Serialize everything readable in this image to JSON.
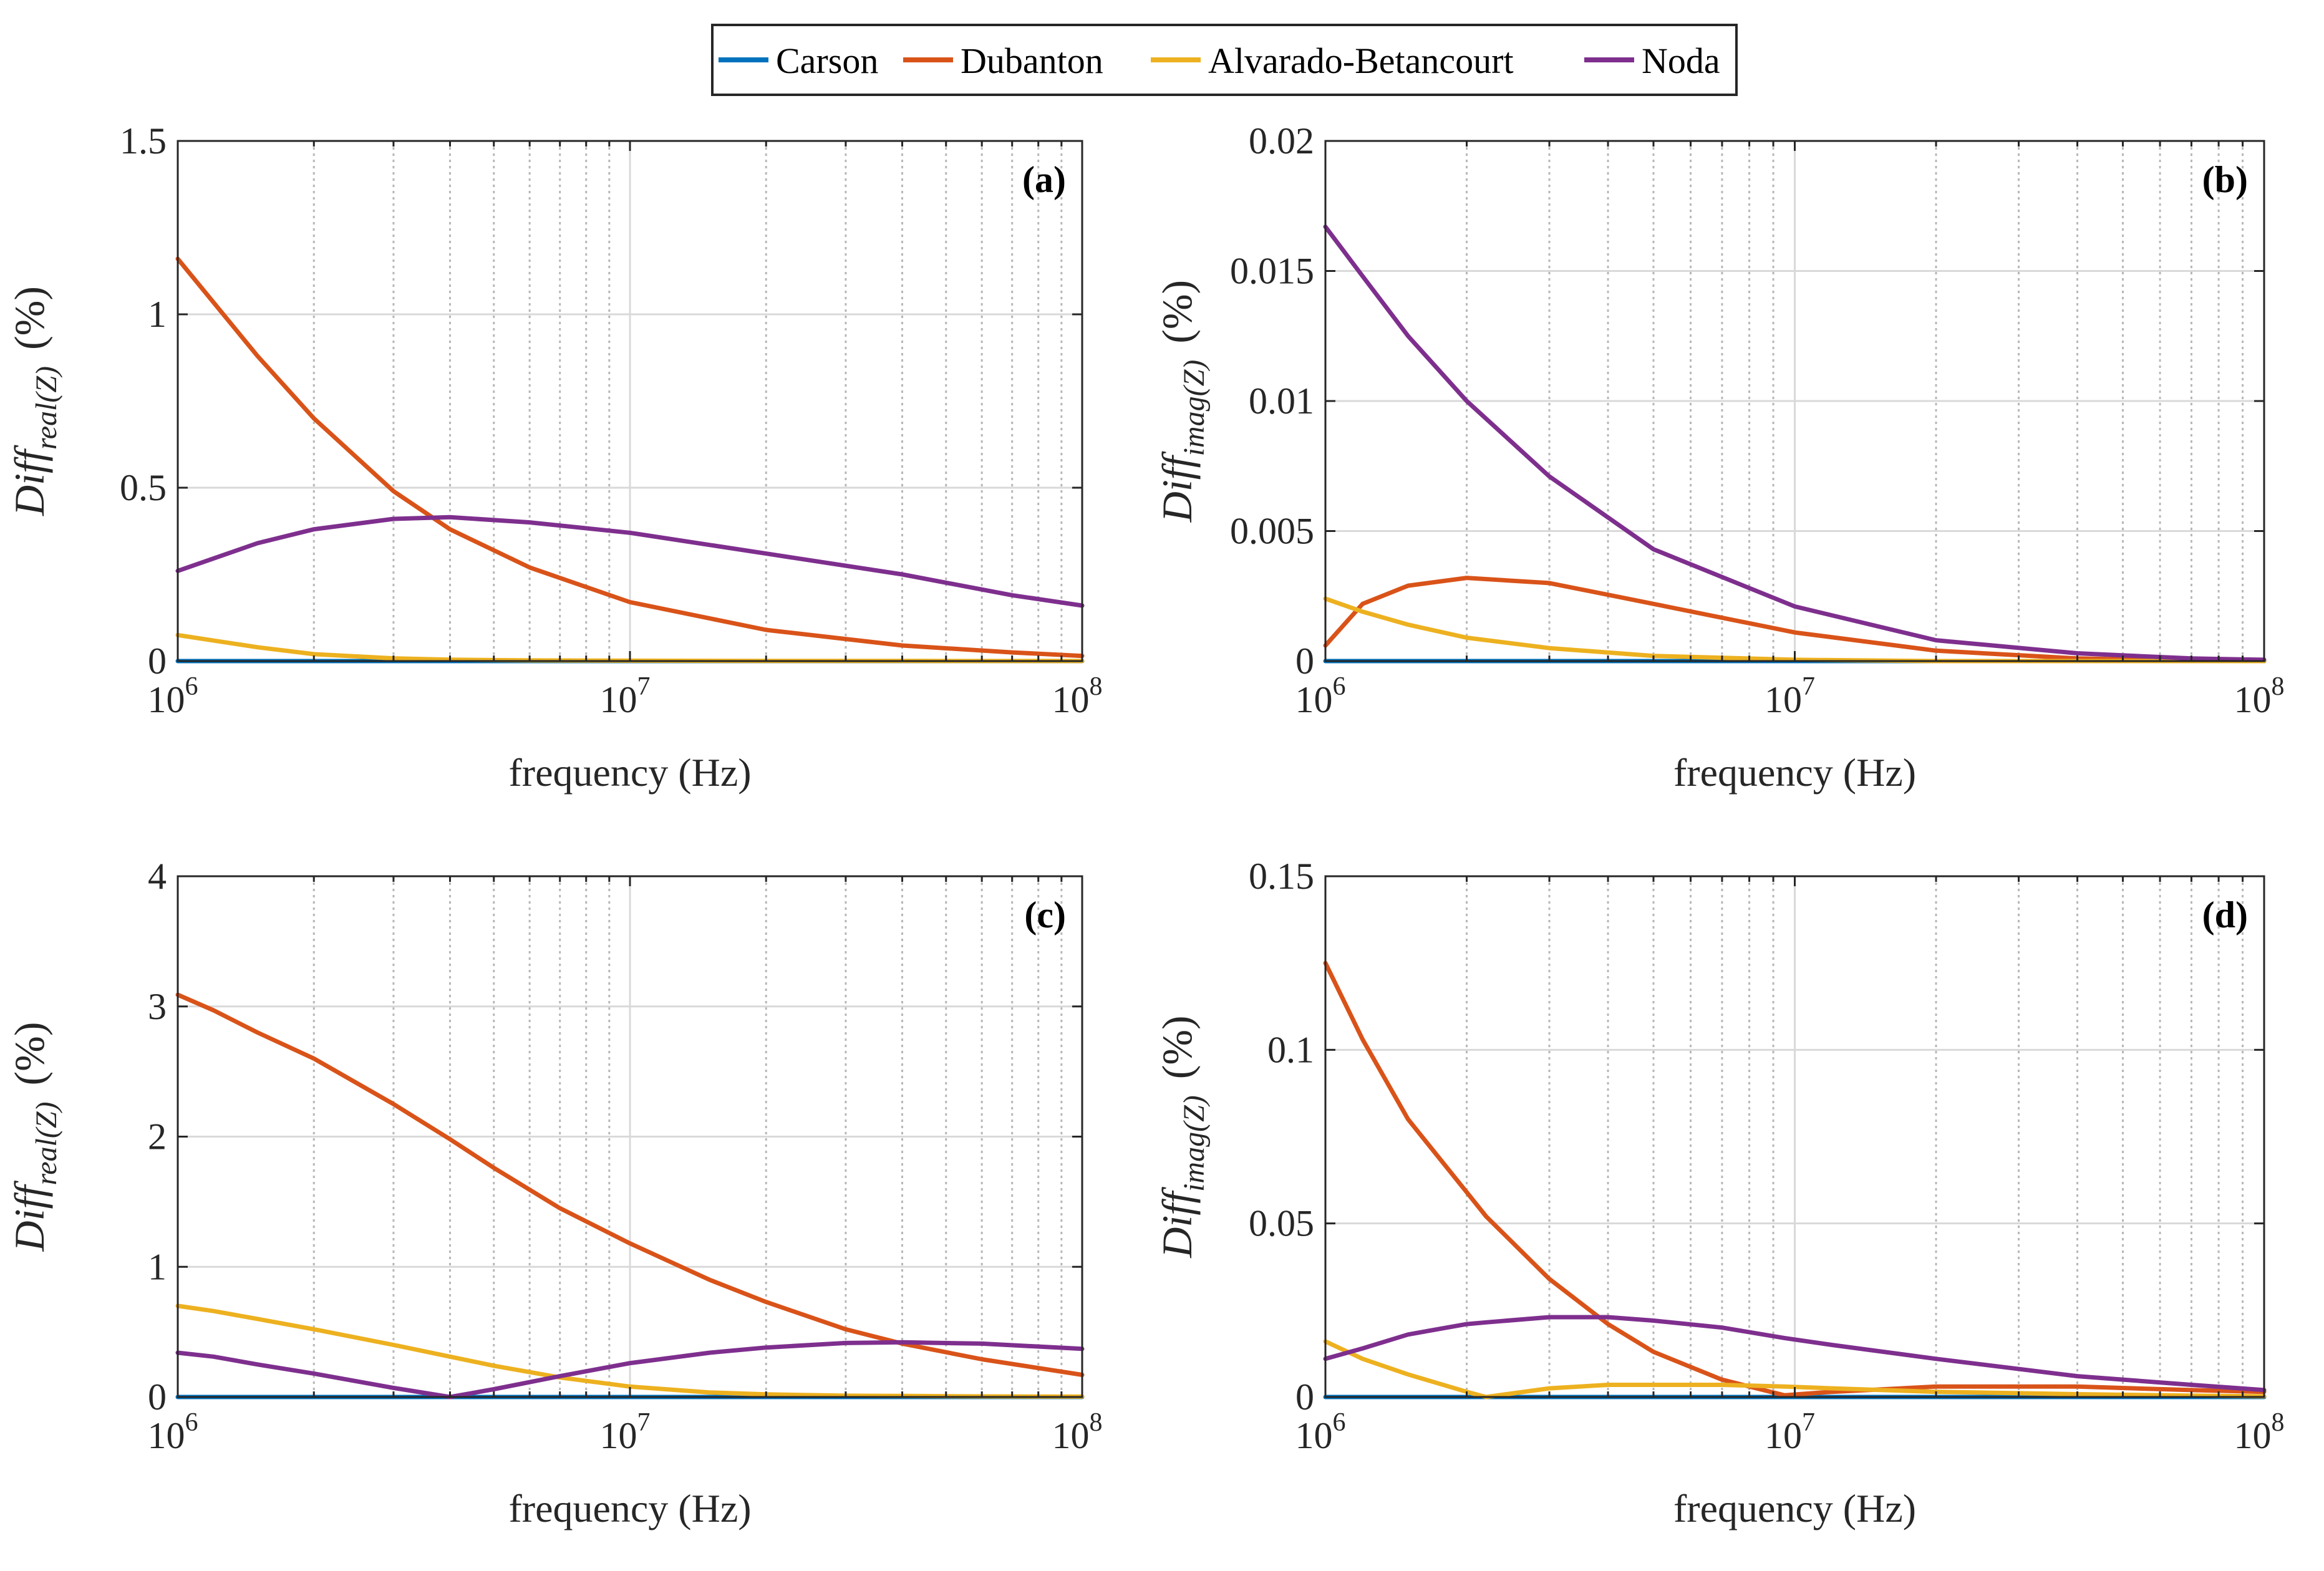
{
  "legend": {
    "entries": [
      {
        "name": "Carson",
        "color": "#0072BD"
      },
      {
        "name": "Dubanton",
        "color": "#D95319"
      },
      {
        "name": "Alvarado-Betancourt",
        "color": "#EDB120"
      },
      {
        "name": "Noda",
        "color": "#7E2F8E"
      }
    ]
  },
  "chart_data": [
    {
      "type": "line",
      "panel": "(a)",
      "xlabel": "frequency (Hz)",
      "xscale": "log",
      "xlim": [
        1000000,
        100000000
      ],
      "xticks": [
        {
          "base": "10",
          "exp": "6"
        },
        {
          "base": "10",
          "exp": "7"
        },
        {
          "base": "10",
          "exp": "8"
        }
      ],
      "ylabel": {
        "main": "Diff",
        "sub": "real(Z)",
        "unit": "(%)"
      },
      "ylim": [
        0,
        1.5
      ],
      "yticks": [
        "0",
        "0.5",
        "1",
        "1.5"
      ],
      "grid": true,
      "x": [
        1000000,
        1500000,
        2000000,
        3000000,
        4000000,
        6000000,
        10000000,
        20000000,
        40000000,
        70000000,
        100000000
      ],
      "series": [
        {
          "name": "Carson",
          "values": [
            0,
            0,
            0,
            0,
            0,
            0,
            0,
            0,
            0,
            0,
            0
          ]
        },
        {
          "name": "Dubanton",
          "values": [
            1.16,
            0.88,
            0.7,
            0.49,
            0.38,
            0.27,
            0.17,
            0.09,
            0.045,
            0.025,
            0.015
          ]
        },
        {
          "name": "Alvarado-Betancourt",
          "values": [
            0.075,
            0.04,
            0.02,
            0.008,
            0.004,
            0.002,
            0.001,
            0.0005,
            0.0003,
            0.0002,
            0.0001
          ]
        },
        {
          "name": "Noda",
          "values": [
            0.26,
            0.34,
            0.38,
            0.41,
            0.415,
            0.4,
            0.37,
            0.31,
            0.25,
            0.19,
            0.16
          ]
        }
      ]
    },
    {
      "type": "line",
      "panel": "(b)",
      "xlabel": "frequency (Hz)",
      "xscale": "log",
      "xlim": [
        1000000,
        100000000
      ],
      "xticks": [
        {
          "base": "10",
          "exp": "6"
        },
        {
          "base": "10",
          "exp": "7"
        },
        {
          "base": "10",
          "exp": "8"
        }
      ],
      "ylabel": {
        "main": "Diff",
        "sub": "imag(Z)",
        "unit": "(%)"
      },
      "ylim": [
        0,
        0.02
      ],
      "yticks": [
        "0",
        "0.005",
        "0.01",
        "0.015",
        "0.02"
      ],
      "grid": true,
      "x": [
        1000000,
        1200000,
        1500000,
        2000000,
        3000000,
        5000000,
        10000000,
        20000000,
        40000000,
        70000000,
        100000000
      ],
      "series": [
        {
          "name": "Carson",
          "values": [
            0,
            0,
            0,
            0,
            0,
            0,
            0,
            0,
            0,
            0,
            0
          ]
        },
        {
          "name": "Dubanton",
          "values": [
            0.0006,
            0.0022,
            0.0029,
            0.0032,
            0.003,
            0.0022,
            0.0011,
            0.0004,
            0.0001,
            2e-05,
            0
          ]
        },
        {
          "name": "Alvarado-Betancourt",
          "values": [
            0.0024,
            0.0019,
            0.0014,
            0.0009,
            0.0005,
            0.0002,
            5e-05,
            0,
            0,
            0,
            0
          ]
        },
        {
          "name": "Noda",
          "values": [
            0.0167,
            0.0148,
            0.0125,
            0.01,
            0.0071,
            0.0043,
            0.0021,
            0.0008,
            0.0003,
            0.0001,
            5e-05
          ]
        }
      ]
    },
    {
      "type": "line",
      "panel": "(c)",
      "xlabel": "frequency (Hz)",
      "xscale": "log",
      "xlim": [
        1000000,
        100000000
      ],
      "xticks": [
        {
          "base": "10",
          "exp": "6"
        },
        {
          "base": "10",
          "exp": "7"
        },
        {
          "base": "10",
          "exp": "8"
        }
      ],
      "ylabel": {
        "main": "Diff",
        "sub": "real(Z)",
        "unit": "(%)"
      },
      "ylim": [
        0,
        4
      ],
      "yticks": [
        "0",
        "1",
        "2",
        "3",
        "4"
      ],
      "grid": true,
      "x": [
        1000000,
        1200000,
        1500000,
        2000000,
        3000000,
        4000000,
        5000000,
        7000000,
        10000000,
        15000000,
        20000000,
        30000000,
        40000000,
        60000000,
        100000000
      ],
      "series": [
        {
          "name": "Carson",
          "values": [
            0,
            0,
            0,
            0,
            0,
            0,
            0,
            0,
            0,
            0,
            0,
            0,
            0,
            0,
            0
          ]
        },
        {
          "name": "Dubanton",
          "values": [
            3.09,
            2.97,
            2.8,
            2.6,
            2.25,
            1.98,
            1.76,
            1.45,
            1.18,
            0.9,
            0.73,
            0.52,
            0.41,
            0.29,
            0.17
          ]
        },
        {
          "name": "Alvarado-Betancourt",
          "values": [
            0.7,
            0.66,
            0.6,
            0.52,
            0.4,
            0.31,
            0.24,
            0.15,
            0.08,
            0.035,
            0.02,
            0.01,
            0.008,
            0.005,
            0.003
          ]
        },
        {
          "name": "Noda",
          "values": [
            0.34,
            0.31,
            0.25,
            0.18,
            0.07,
            0.0,
            0.06,
            0.16,
            0.26,
            0.34,
            0.38,
            0.415,
            0.42,
            0.41,
            0.37
          ]
        }
      ]
    },
    {
      "type": "line",
      "panel": "(d)",
      "xlabel": "frequency (Hz)",
      "xscale": "log",
      "xlim": [
        1000000,
        100000000
      ],
      "xticks": [
        {
          "base": "10",
          "exp": "6"
        },
        {
          "base": "10",
          "exp": "7"
        },
        {
          "base": "10",
          "exp": "8"
        }
      ],
      "ylabel": {
        "main": "Diff",
        "sub": "imag(Z)",
        "unit": "(%)"
      },
      "ylim": [
        0,
        0.15
      ],
      "yticks": [
        "0",
        "0.05",
        "0.1",
        "0.15"
      ],
      "grid": true,
      "x": [
        1000000,
        1200000,
        1500000,
        2000000,
        2200000,
        3000000,
        4000000,
        5000000,
        7000000,
        9500000,
        12000000,
        20000000,
        40000000,
        70000000,
        100000000
      ],
      "series": [
        {
          "name": "Carson",
          "values": [
            0,
            0,
            0,
            0,
            0,
            0,
            0,
            0,
            0,
            0,
            0,
            0,
            0,
            0,
            0
          ]
        },
        {
          "name": "Dubanton",
          "values": [
            0.125,
            0.103,
            0.08,
            0.059,
            0.052,
            0.034,
            0.021,
            0.013,
            0.005,
            0.0005,
            0.0015,
            0.003,
            0.003,
            0.002,
            0.0015
          ]
        },
        {
          "name": "Alvarado-Betancourt",
          "values": [
            0.016,
            0.011,
            0.0065,
            0.0015,
            0.0,
            0.0025,
            0.0035,
            0.0035,
            0.0035,
            0.003,
            0.0025,
            0.0015,
            0.0008,
            0.0004,
            0.0002
          ]
        },
        {
          "name": "Noda",
          "values": [
            0.011,
            0.014,
            0.018,
            0.021,
            0.0215,
            0.023,
            0.023,
            0.022,
            0.02,
            0.017,
            0.015,
            0.011,
            0.006,
            0.0035,
            0.002
          ]
        }
      ]
    }
  ]
}
